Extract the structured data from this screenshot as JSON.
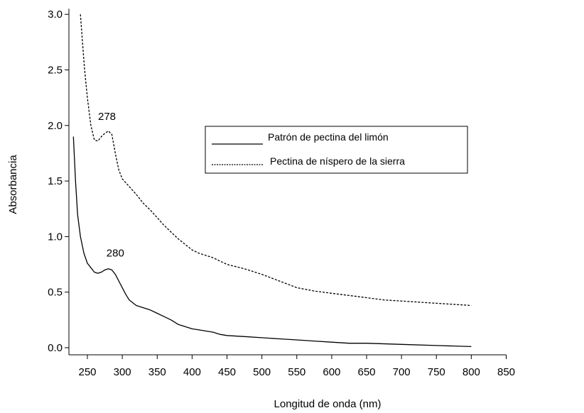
{
  "chart_data": {
    "type": "line",
    "xlabel": "Longitud de onda (nm)",
    "ylabel": "Absorbancia",
    "xlim": [
      225,
      850
    ],
    "ylim": [
      0,
      3.05
    ],
    "xticks": [
      "250",
      "300",
      "350",
      "400",
      "450",
      "500",
      "550",
      "600",
      "650",
      "700",
      "750",
      "800",
      "850"
    ],
    "yticks": [
      "0.0",
      "0.5",
      "1.0",
      "1.5",
      "2.0",
      "2.5",
      "3.0"
    ],
    "legend_position": "center-right",
    "grid": false,
    "series": [
      {
        "name": "Patrón de pectina del limón",
        "style": "solid",
        "color": "#000000",
        "x": [
          230,
          233,
          236,
          240,
          245,
          250,
          255,
          260,
          265,
          270,
          275,
          280,
          285,
          290,
          295,
          300,
          305,
          310,
          320,
          330,
          340,
          350,
          360,
          370,
          380,
          390,
          400,
          410,
          420,
          430,
          440,
          450,
          475,
          500,
          525,
          550,
          575,
          600,
          625,
          650,
          700,
          750,
          800
        ],
        "y": [
          1.9,
          1.5,
          1.2,
          1.0,
          0.85,
          0.76,
          0.72,
          0.68,
          0.67,
          0.68,
          0.7,
          0.71,
          0.7,
          0.66,
          0.6,
          0.54,
          0.48,
          0.43,
          0.38,
          0.36,
          0.34,
          0.31,
          0.28,
          0.25,
          0.21,
          0.19,
          0.17,
          0.16,
          0.15,
          0.14,
          0.12,
          0.11,
          0.1,
          0.09,
          0.08,
          0.07,
          0.06,
          0.05,
          0.04,
          0.04,
          0.03,
          0.02,
          0.01
        ]
      },
      {
        "name": "Pectina de níspero de la sierra",
        "style": "dashed",
        "color": "#000000",
        "x": [
          240,
          243,
          246,
          250,
          255,
          260,
          265,
          270,
          275,
          280,
          285,
          290,
          295,
          300,
          310,
          320,
          330,
          340,
          350,
          360,
          370,
          380,
          390,
          400,
          410,
          420,
          430,
          440,
          450,
          475,
          500,
          525,
          550,
          575,
          600,
          625,
          650,
          675,
          700,
          725,
          750,
          775,
          800
        ],
        "y": [
          3.0,
          2.75,
          2.5,
          2.25,
          2.0,
          1.87,
          1.86,
          1.9,
          1.93,
          1.95,
          1.92,
          1.75,
          1.6,
          1.52,
          1.45,
          1.38,
          1.3,
          1.24,
          1.17,
          1.1,
          1.04,
          0.98,
          0.93,
          0.88,
          0.85,
          0.83,
          0.81,
          0.78,
          0.75,
          0.71,
          0.66,
          0.6,
          0.54,
          0.51,
          0.49,
          0.47,
          0.45,
          0.43,
          0.42,
          0.41,
          0.4,
          0.39,
          0.38
        ]
      }
    ],
    "annotations": [
      {
        "text": "278",
        "x": 278,
        "y": 2.05
      },
      {
        "text": "280",
        "x": 290,
        "y": 0.82
      }
    ]
  }
}
